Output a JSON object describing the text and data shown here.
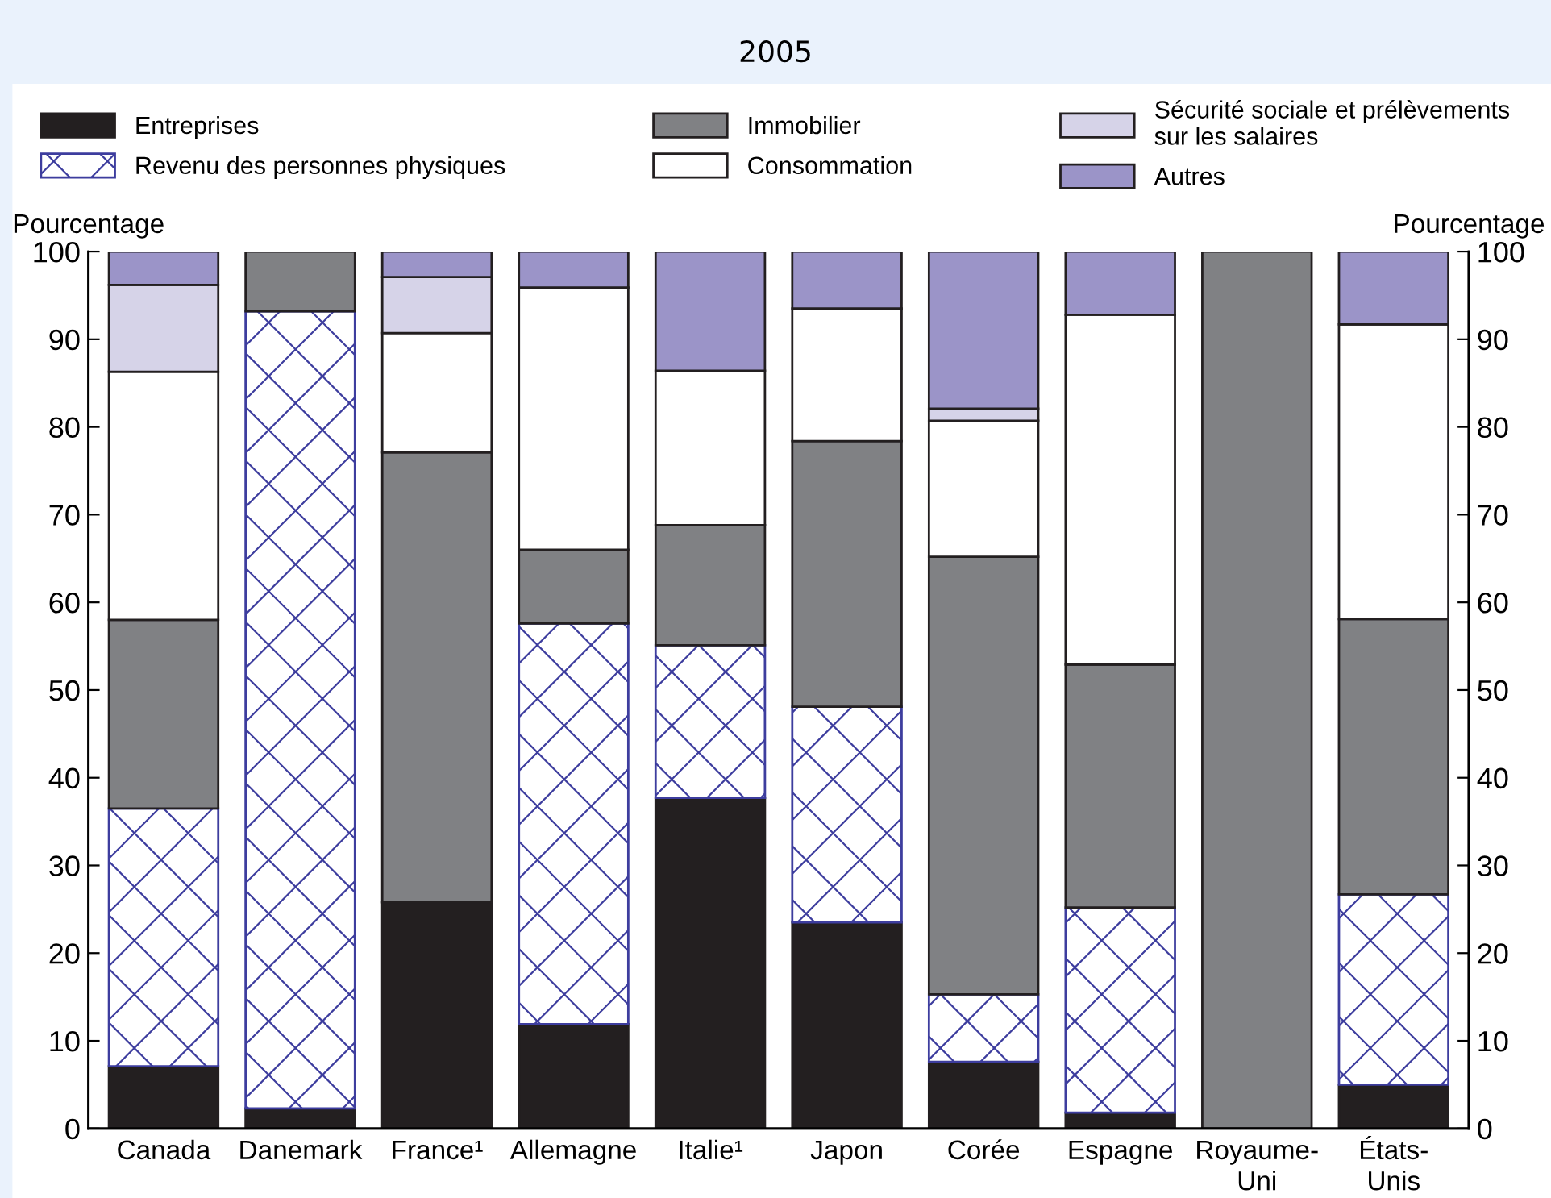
{
  "chart_data": {
    "type": "bar",
    "stacked": true,
    "title": "2005",
    "ylabel": "Pourcentage",
    "y2label": "Pourcentage",
    "categories": [
      "Canada",
      "Danemark",
      "France¹",
      "Allemagne",
      "Italie¹",
      "Japon",
      "Corée",
      "Espagne",
      "Royaume-\nUni",
      "États-\nUnis"
    ],
    "series": [
      {
        "name": "Entreprises",
        "color": "#231f20",
        "values": [
          7.1,
          2.3,
          25.8,
          11.9,
          37.7,
          23.5,
          7.6,
          1.8,
          null,
          5.0
        ]
      },
      {
        "name": "Revenu des personnes physiques",
        "color": "#3d3d9e",
        "values": [
          29.4,
          90.9,
          null,
          45.7,
          17.4,
          24.6,
          7.7,
          23.4,
          null,
          21.7
        ]
      },
      {
        "name": "Immobilier",
        "color": "#808184",
        "values": [
          21.5,
          6.8,
          51.3,
          8.4,
          13.7,
          30.3,
          49.9,
          27.7,
          100,
          31.4
        ]
      },
      {
        "name": "Consommation",
        "color": "#ffffff",
        "values": [
          28.3,
          null,
          13.6,
          29.9,
          17.6,
          15.1,
          15.5,
          39.9,
          null,
          33.6
        ]
      },
      {
        "name": "Sécurité sociale et prélèvements\nsur les salaires",
        "color": "#d6d3e8",
        "values": [
          9.9,
          null,
          6.4,
          null,
          null,
          null,
          1.4,
          null,
          null,
          null
        ]
      },
      {
        "name": "Autres",
        "color": "#9b94c8",
        "values": [
          3.8,
          null,
          2.9,
          4.1,
          13.6,
          6.5,
          17.9,
          7.2,
          null,
          8.3
        ]
      }
    ],
    "ylim": [
      0,
      100
    ],
    "yticks": [
      0,
      10,
      20,
      30,
      40,
      50,
      60,
      70,
      80,
      90,
      100
    ],
    "y2lim": [
      0,
      100
    ],
    "y2ticks": [
      0,
      10,
      20,
      30,
      40,
      50,
      60,
      70,
      80,
      90,
      100
    ],
    "grid": false,
    "legend": "top"
  }
}
